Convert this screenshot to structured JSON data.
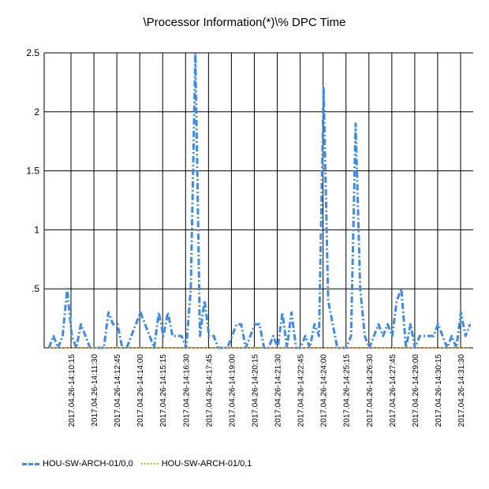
{
  "chart_data": {
    "type": "line",
    "title": "\\Processor Information(*)\\% DPC Time",
    "y_tick_labels": [
      "",
      ".5",
      "1",
      "1.5",
      "2",
      "2.5"
    ],
    "y_ticks": [
      0,
      0.5,
      1,
      1.5,
      2,
      2.5
    ],
    "ylim": [
      0,
      2.5
    ],
    "x_tick_labels": [
      "2017.04.26-14:10:15",
      "2017.04.26-14:11:30",
      "2017.04.26-14:12:45",
      "2017.04.26-14:14:00",
      "2017.04.26-14:15:15",
      "2017.04.26-14:16:30",
      "2017.04.26-14:17:45",
      "2017.04.26-14:19:00",
      "2017.04.26-14:20:15",
      "2017.04.26-14:21:30",
      "2017.04.26-14:22:45",
      "2017.04.26-14:24:00",
      "2017.04.26-14:25:15",
      "2017.04.26-14:26:30",
      "2017.04.26-14:27:45",
      "2017.04.26-14:29:00",
      "2017.04.26-14:30:15",
      "2017.04.26-14:31:30"
    ],
    "grid": true,
    "legend_position": "bottom-left",
    "series": [
      {
        "name": "HOU-SW-ARCH-01/0,0",
        "color": "#3c8be6",
        "style": "dash-dot",
        "values": [
          0,
          0.1,
          0,
          0.1,
          0.5,
          0.1,
          0,
          0.2,
          0.1,
          0,
          0,
          0,
          0,
          0.3,
          0.2,
          0.2,
          0,
          0,
          0.1,
          0.2,
          0.3,
          0.2,
          0.1,
          0,
          0.3,
          0.1,
          0.3,
          0.1,
          0.1,
          0.1,
          0,
          0.5,
          2.5,
          0.1,
          0.4,
          0.1,
          0.1,
          0,
          0,
          0,
          0.1,
          0.2,
          0.2,
          0,
          0.1,
          0.2,
          0.2,
          0,
          0,
          0.1,
          0,
          0.3,
          0,
          0.3,
          0,
          0,
          0.1,
          0,
          0.2,
          0.1,
          2.2,
          0.4,
          0.2,
          0,
          0,
          0,
          0.1,
          1.9,
          0.5,
          0.1,
          0,
          0.1,
          0.2,
          0.1,
          0.2,
          0.1,
          0.4,
          0.5,
          0,
          0.2,
          0,
          0.1,
          0.1,
          0.1,
          0.1,
          0.2,
          0.1,
          0,
          0.1,
          0,
          0.3,
          0.1,
          0.2
        ]
      },
      {
        "name": "HOU-SW-ARCH-01/0,1",
        "color": "#f5a623",
        "style": "dotted",
        "values": [
          0,
          0,
          0,
          0,
          0,
          0,
          0,
          0,
          0,
          0,
          0,
          0,
          0,
          0,
          0,
          0,
          0,
          0,
          0,
          0,
          0,
          0,
          0,
          0,
          0,
          0,
          0,
          0,
          0,
          0,
          0,
          0,
          0,
          0,
          0,
          0,
          0,
          0,
          0,
          0,
          0,
          0,
          0,
          0,
          0,
          0,
          0,
          0,
          0,
          0,
          0,
          0,
          0,
          0,
          0,
          0,
          0,
          0,
          0,
          0,
          0,
          0,
          0,
          0,
          0,
          0,
          0,
          0,
          0,
          0,
          0,
          0,
          0,
          0,
          0,
          0,
          0,
          0,
          0,
          0,
          0,
          0,
          0,
          0,
          0,
          0,
          0,
          0,
          0,
          0,
          0,
          0,
          0
        ]
      }
    ]
  }
}
